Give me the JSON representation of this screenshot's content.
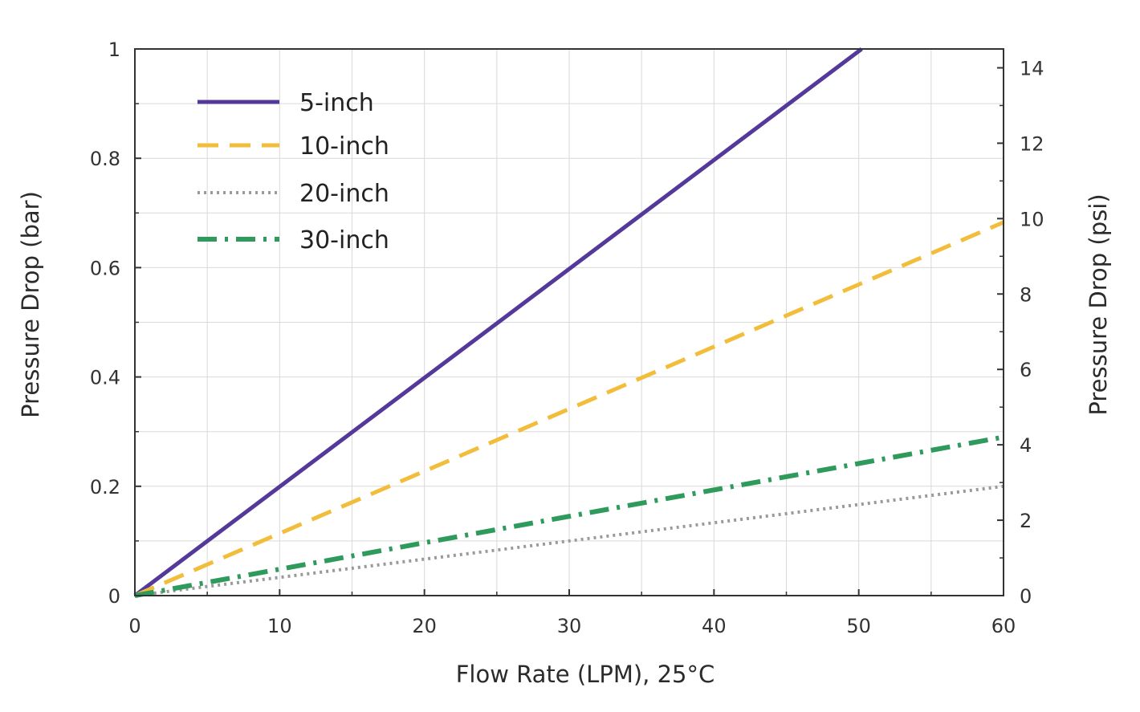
{
  "chart_data": {
    "type": "line",
    "xlabel": "Flow Rate (LPM), 25°C",
    "ylabel": "Pressure Drop (bar)",
    "y2label": "Pressure Drop (psi)",
    "xlim": [
      0,
      60
    ],
    "ylim": [
      0,
      1
    ],
    "y2lim": [
      0,
      14.5
    ],
    "x_ticks": [
      "0",
      "10",
      "20",
      "30",
      "40",
      "50",
      "60"
    ],
    "y_ticks": [
      "0",
      "0.2",
      "0.4",
      "0.6",
      "0.8",
      "1"
    ],
    "y2_ticks": [
      "0",
      "2",
      "4",
      "6",
      "8",
      "10",
      "12",
      "14"
    ],
    "grid": true,
    "legend_position": "top-left",
    "series": [
      {
        "name": "5-inch",
        "style": "solid",
        "color": "#54399a",
        "x": [
          0,
          50.2
        ],
        "y": [
          0,
          1.0
        ]
      },
      {
        "name": "10-inch",
        "style": "dashed",
        "color": "#f2bd3a",
        "x": [
          0,
          60
        ],
        "y": [
          0,
          0.683
        ]
      },
      {
        "name": "20-inch",
        "style": "dotted",
        "color": "#9a9a9a",
        "x": [
          0,
          60
        ],
        "y": [
          0,
          0.2
        ]
      },
      {
        "name": "30-inch",
        "style": "dashdot",
        "color": "#2e9a5c",
        "x": [
          0,
          60
        ],
        "y": [
          0,
          0.29
        ]
      }
    ]
  }
}
